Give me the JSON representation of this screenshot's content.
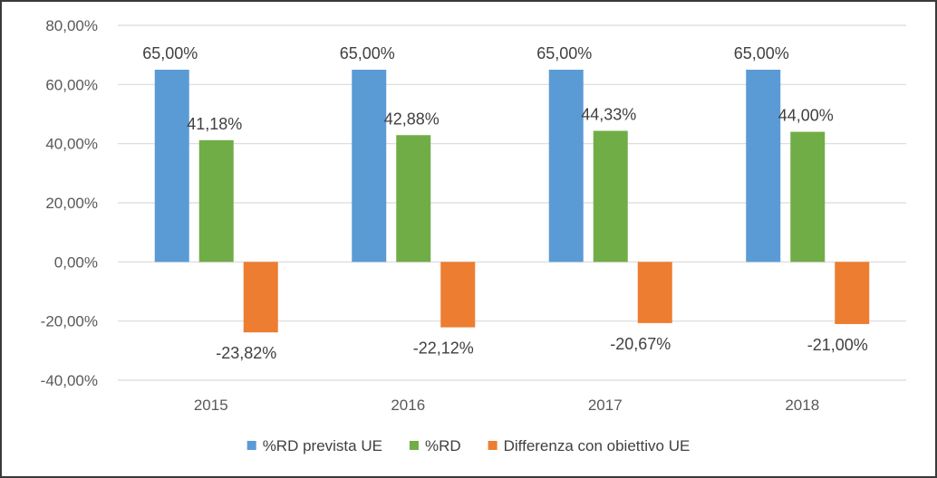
{
  "chart_data": {
    "type": "bar",
    "categories": [
      "2015",
      "2016",
      "2017",
      "2018"
    ],
    "series": [
      {
        "name": "%RD prevista UE",
        "color": "#5b9bd5",
        "values": [
          65.0,
          65.0,
          65.0,
          65.0
        ],
        "labels": [
          "65,00%",
          "65,00%",
          "65,00%",
          "65,00%"
        ]
      },
      {
        "name": "%RD",
        "color": "#70ad47",
        "values": [
          41.18,
          42.88,
          44.33,
          44.0
        ],
        "labels": [
          "41,18%",
          "42,88%",
          "44,33%",
          "44,00%"
        ]
      },
      {
        "name": "Differenza con obiettivo UE",
        "color": "#ed7d31",
        "values": [
          -23.82,
          -22.12,
          -20.67,
          -21.0
        ],
        "labels": [
          "-23,82%",
          "-22,12%",
          "-20,67%",
          "-21,00%"
        ]
      }
    ],
    "ylim": [
      -40,
      80
    ],
    "yticks": [
      -40,
      -20,
      0,
      20,
      40,
      60,
      80
    ],
    "ytick_labels": [
      "-40,00%",
      "-20,00%",
      "0,00%",
      "20,00%",
      "40,00%",
      "60,00%",
      "80,00%"
    ],
    "grid": true,
    "legend": "bottom",
    "title": "",
    "xlabel": "",
    "ylabel": ""
  }
}
